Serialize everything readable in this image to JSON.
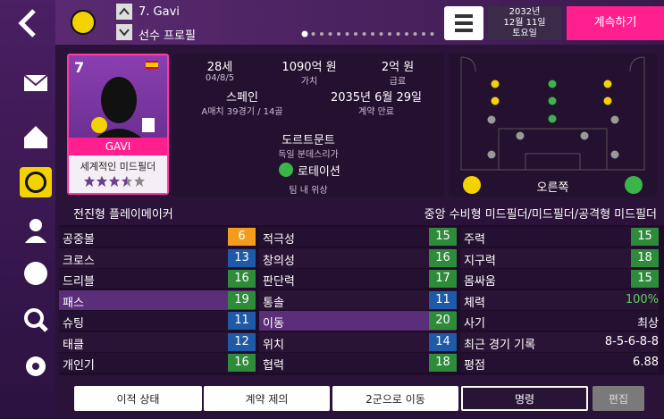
{
  "header": {
    "player": "7. Gavi",
    "section": "선수 프로필",
    "date": [
      "2032년",
      "12월 11일",
      "토요일"
    ],
    "continue": "계속하기"
  },
  "card": {
    "number": "7",
    "name": "GAVI",
    "description": "세계적인 미드필더",
    "stars": 3.5
  },
  "info": {
    "age": "28세",
    "birth": "04/8/5",
    "value": "1090억 원",
    "value_label": "가치",
    "wage": "2억 원",
    "wage_label": "급료",
    "nation": "스페인",
    "caps": "A매치 39경기 / 14골",
    "contract": "2035년 6월 29일",
    "contract_label": "계약 만료",
    "club": "도르트문트",
    "league": "독일 분데스리가",
    "status": "로테이션",
    "status_label": "팀 내 위상"
  },
  "pitch": {
    "foot": "오른쪽"
  },
  "role": "전진형 플레이메이커",
  "positions": "중앙 수비형 미드필더/미드필더/공격형 미드필더",
  "attributes": [
    [
      [
        "공중볼",
        6
      ],
      [
        "크로스",
        13
      ],
      [
        "드리블",
        16
      ],
      [
        "패스",
        19
      ],
      [
        "슈팅",
        11
      ],
      [
        "태클",
        12
      ],
      [
        "개인기",
        16
      ]
    ],
    [
      [
        "적극성",
        15
      ],
      [
        "창의성",
        16
      ],
      [
        "판단력",
        17
      ],
      [
        "통솔",
        11
      ],
      [
        "이동",
        20
      ],
      [
        "위치",
        14
      ],
      [
        "협력",
        18
      ]
    ],
    [
      [
        "주력",
        15
      ],
      [
        "지구력",
        18
      ],
      [
        "몸싸움",
        15
      ],
      [
        "체력",
        "100%"
      ],
      [
        "사기",
        "최상"
      ],
      [
        "최근 경기 기록",
        "8-5-6-8-8"
      ],
      [
        "평점",
        "6.88"
      ]
    ]
  ],
  "buttons": [
    "이적 상태",
    "계약 제의",
    "2군으로 이동",
    "명령",
    "편집"
  ]
}
